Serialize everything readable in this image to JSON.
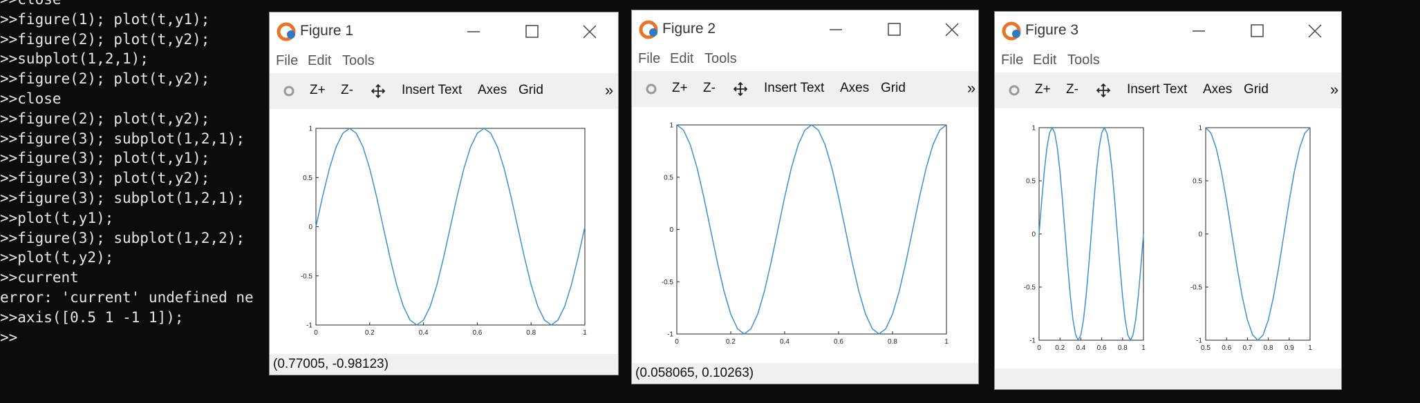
{
  "terminal": {
    "lines": [
      ">>close",
      ">>figure(1); plot(t,y1);",
      ">>figure(2); plot(t,y2);",
      ">>subplot(1,2,1);",
      ">>figure(2); plot(t,y2);",
      ">>close",
      ">>figure(2); plot(t,y2);",
      ">>figure(3); subplot(1,2,1);",
      ">>figure(3); plot(t,y1);",
      ">>figure(3); plot(t,y2);",
      ">>figure(3); subplot(1,2,1);",
      ">>plot(t,y1);",
      ">>figure(3); subplot(1,2,2);",
      ">>plot(t,y2);",
      ">>current",
      "error: 'current' undefined ne",
      ">>axis([0.5 1 -1 1]);",
      ">>"
    ]
  },
  "windows": [
    {
      "title": "Figure 1",
      "menu": [
        "File",
        "Edit",
        "Tools"
      ],
      "toolbar": [
        "Z+",
        "Z-",
        "Insert Text",
        "Axes",
        "Grid"
      ],
      "overflow": "»",
      "status": "(0.77005, -0.98123)",
      "chart_data": {
        "type": "line",
        "x": [
          0,
          0.025,
          0.05,
          0.075,
          0.1,
          0.125,
          0.15,
          0.175,
          0.2,
          0.225,
          0.25,
          0.275,
          0.3,
          0.325,
          0.35,
          0.375,
          0.4,
          0.425,
          0.45,
          0.475,
          0.5,
          0.525,
          0.55,
          0.575,
          0.6,
          0.625,
          0.65,
          0.675,
          0.7,
          0.725,
          0.75,
          0.775,
          0.8,
          0.825,
          0.85,
          0.875,
          0.9,
          0.925,
          0.95,
          0.975,
          1
        ],
        "series": [
          {
            "color": "#3d8fd1",
            "values": [
              0,
              0.31,
              0.59,
              0.81,
              0.95,
              1,
              0.95,
              0.81,
              0.59,
              0.31,
              0,
              -0.31,
              -0.59,
              -0.81,
              -0.95,
              -1,
              -0.95,
              -0.81,
              -0.59,
              -0.31,
              0,
              0.31,
              0.59,
              0.81,
              0.95,
              1,
              0.95,
              0.81,
              0.59,
              0.31,
              0,
              -0.31,
              -0.59,
              -0.81,
              -0.95,
              -1,
              -0.95,
              -0.81,
              -0.59,
              -0.31,
              0
            ]
          }
        ],
        "xlim": [
          0,
          1
        ],
        "ylim": [
          -1,
          1
        ],
        "xticks": [
          0,
          0.2,
          0.4,
          0.6,
          0.8,
          1
        ],
        "yticks": [
          -1,
          -0.5,
          0,
          0.5,
          1
        ]
      }
    },
    {
      "title": "Figure 2",
      "menu": [
        "File",
        "Edit",
        "Tools"
      ],
      "toolbar": [
        "Z+",
        "Z-",
        "Insert Text",
        "Axes",
        "Grid"
      ],
      "overflow": "»",
      "status": "(0.058065, 0.10263)",
      "chart_data": {
        "type": "line",
        "x": [
          0,
          0.025,
          0.05,
          0.075,
          0.1,
          0.125,
          0.15,
          0.175,
          0.2,
          0.225,
          0.25,
          0.275,
          0.3,
          0.325,
          0.35,
          0.375,
          0.4,
          0.425,
          0.45,
          0.475,
          0.5,
          0.525,
          0.55,
          0.575,
          0.6,
          0.625,
          0.65,
          0.675,
          0.7,
          0.725,
          0.75,
          0.775,
          0.8,
          0.825,
          0.85,
          0.875,
          0.9,
          0.925,
          0.95,
          0.975,
          1
        ],
        "series": [
          {
            "color": "#3d8fd1",
            "values": [
              1,
              0.95,
              0.81,
              0.59,
              0.31,
              0,
              -0.31,
              -0.59,
              -0.81,
              -0.95,
              -1,
              -0.95,
              -0.81,
              -0.59,
              -0.31,
              0,
              0.31,
              0.59,
              0.81,
              0.95,
              1,
              0.95,
              0.81,
              0.59,
              0.31,
              0,
              -0.31,
              -0.59,
              -0.81,
              -0.95,
              -1,
              -0.95,
              -0.81,
              -0.59,
              -0.31,
              0,
              0.31,
              0.59,
              0.81,
              0.95,
              1
            ]
          }
        ],
        "xlim": [
          0,
          1
        ],
        "ylim": [
          -1,
          1
        ],
        "xticks": [
          0,
          0.2,
          0.4,
          0.6,
          0.8,
          1
        ],
        "yticks": [
          -1,
          -0.5,
          0,
          0.5,
          1
        ]
      }
    },
    {
      "title": "Figure 3",
      "menu": [
        "File",
        "Edit",
        "Tools"
      ],
      "toolbar": [
        "Z+",
        "Z-",
        "Insert Text",
        "Axes",
        "Grid"
      ],
      "overflow": "»",
      "chart_data": [
        {
          "type": "line",
          "x": [
            0,
            0.025,
            0.05,
            0.075,
            0.1,
            0.125,
            0.15,
            0.175,
            0.2,
            0.225,
            0.25,
            0.275,
            0.3,
            0.325,
            0.35,
            0.375,
            0.4,
            0.425,
            0.45,
            0.475,
            0.5,
            0.525,
            0.55,
            0.575,
            0.6,
            0.625,
            0.65,
            0.675,
            0.7,
            0.725,
            0.75,
            0.775,
            0.8,
            0.825,
            0.85,
            0.875,
            0.9,
            0.925,
            0.95,
            0.975,
            1
          ],
          "series": [
            {
              "color": "#3d8fd1",
              "values": [
                0,
                0.31,
                0.59,
                0.81,
                0.95,
                1,
                0.95,
                0.81,
                0.59,
                0.31,
                0,
                -0.31,
                -0.59,
                -0.81,
                -0.95,
                -1,
                -0.95,
                -0.81,
                -0.59,
                -0.31,
                0,
                0.31,
                0.59,
                0.81,
                0.95,
                1,
                0.95,
                0.81,
                0.59,
                0.31,
                0,
                -0.31,
                -0.59,
                -0.81,
                -0.95,
                -1,
                -0.95,
                -0.81,
                -0.59,
                -0.31,
                0
              ]
            }
          ],
          "xlim": [
            0,
            1
          ],
          "ylim": [
            -1,
            1
          ],
          "xticks": [
            0,
            0.2,
            0.4,
            0.6,
            0.8,
            1
          ],
          "yticks": [
            -1,
            -0.5,
            0,
            0.5,
            1
          ]
        },
        {
          "type": "line",
          "x": [
            0.5,
            0.525,
            0.55,
            0.575,
            0.6,
            0.625,
            0.65,
            0.675,
            0.7,
            0.725,
            0.75,
            0.775,
            0.8,
            0.825,
            0.85,
            0.875,
            0.9,
            0.925,
            0.95,
            0.975,
            1
          ],
          "series": [
            {
              "color": "#3d8fd1",
              "values": [
                1,
                0.95,
                0.81,
                0.59,
                0.31,
                0,
                -0.31,
                -0.59,
                -0.81,
                -0.95,
                -1,
                -0.95,
                -0.81,
                -0.59,
                -0.31,
                0,
                0.31,
                0.59,
                0.81,
                0.95,
                1
              ]
            }
          ],
          "xlim": [
            0.5,
            1
          ],
          "ylim": [
            -1,
            1
          ],
          "xticks": [
            0.5,
            0.6,
            0.7,
            0.8,
            0.9,
            1
          ],
          "yticks": [
            -1,
            -0.5,
            0,
            0.5,
            1
          ]
        }
      ]
    }
  ]
}
